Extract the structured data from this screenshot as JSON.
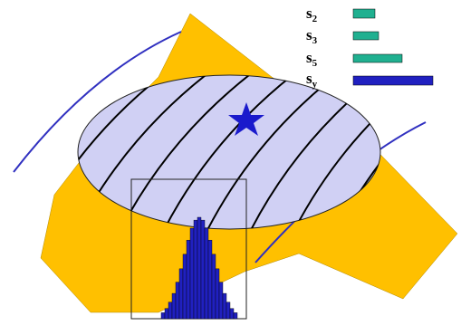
{
  "legend": [
    {
      "base": "s",
      "sub": "2"
    },
    {
      "base": "s",
      "sub": "3"
    },
    {
      "base": "s",
      "sub": "5"
    },
    {
      "base": "s",
      "sub": "y"
    }
  ]
}
